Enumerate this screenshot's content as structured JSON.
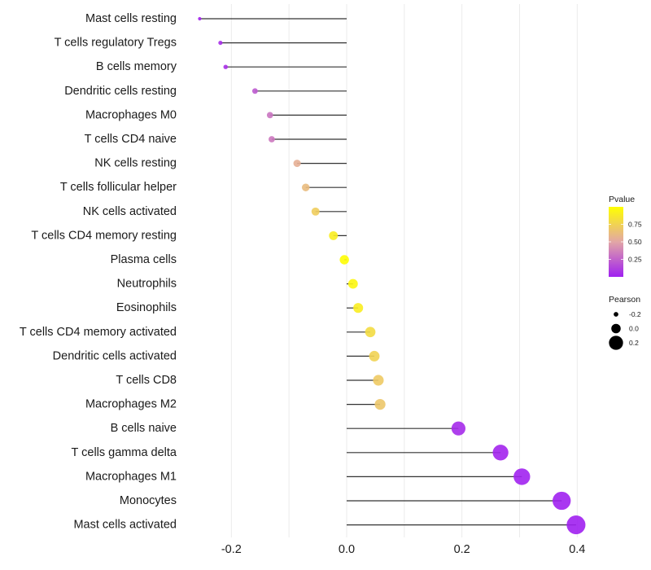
{
  "chart_data": {
    "type": "lollipop",
    "title": "",
    "xlabel": "",
    "ylabel": "",
    "xlim": [
      -0.27,
      0.41
    ],
    "x_ticks": [
      -0.2,
      0.0,
      0.2,
      0.4
    ],
    "x_tick_labels": [
      "-0.2",
      "0.0",
      "0.2",
      "0.4"
    ],
    "grid": true,
    "categories": [
      "Mast cells resting",
      "T cells regulatory  Tregs",
      "B cells memory",
      "Dendritic cells resting",
      "Macrophages M0",
      "T cells CD4 naive",
      "NK cells resting",
      "T cells follicular helper",
      "NK cells activated",
      "T cells CD4 memory resting",
      "Plasma cells",
      "Neutrophils",
      "Eosinophils",
      "T cells CD4 memory activated",
      "Dendritic cells activated",
      "T cells CD8",
      "Macrophages M2",
      "B cells naive",
      "T cells gamma delta",
      "Macrophages M1",
      "Monocytes",
      "Mast cells activated"
    ],
    "pearson": [
      -0.255,
      -0.219,
      -0.21,
      -0.159,
      -0.133,
      -0.13,
      -0.086,
      -0.071,
      -0.054,
      -0.023,
      -0.004,
      0.011,
      0.02,
      0.041,
      0.048,
      0.055,
      0.058,
      0.194,
      0.267,
      0.304,
      0.373,
      0.398
    ],
    "pvalue": [
      0.02,
      0.05,
      0.06,
      0.22,
      0.32,
      0.33,
      0.55,
      0.62,
      0.72,
      0.9,
      0.99,
      0.95,
      0.9,
      0.8,
      0.75,
      0.7,
      0.68,
      0.04,
      0.02,
      0.01,
      0.002,
      0.001
    ],
    "legend": {
      "color": {
        "title": "Pvalue",
        "ticks": [
          0.25,
          0.5,
          0.75
        ],
        "tick_labels": [
          "0.25",
          "0.50",
          "0.75"
        ],
        "range": [
          0,
          1
        ],
        "low_color": "#a020f0",
        "mid_color": "#e2a6a6",
        "high_color": "#ffff00"
      },
      "size": {
        "title": "Pearson",
        "values": [
          -0.2,
          0.0,
          0.2
        ],
        "labels": [
          "-0.2",
          "0.0",
          "0.2"
        ]
      },
      "placement": "right"
    }
  }
}
